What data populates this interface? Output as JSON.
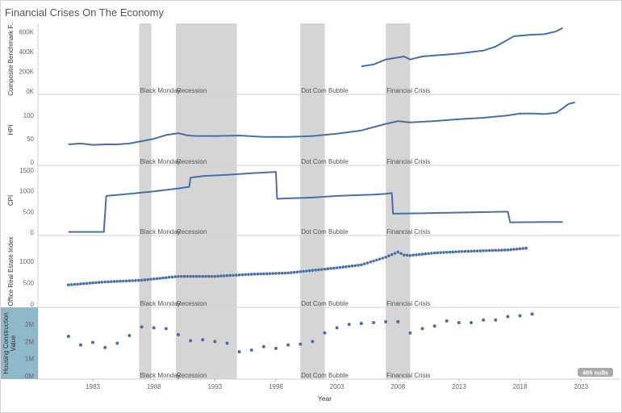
{
  "title": "Financial Crises On The Economy",
  "accent_color": "#4a6fa0",
  "band_color": "#d5d5d5",
  "chart_data": {
    "type": "line",
    "xlabel": "Year",
    "xlim": [
      1978.5,
      2025.5
    ],
    "x_ticks": [
      1983,
      1988,
      1993,
      1998,
      2003,
      2008,
      2013,
      2018,
      2023
    ],
    "events": [
      {
        "label": "Black Monday",
        "start": 1986.8,
        "end": 1987.8
      },
      {
        "label": "Recession",
        "start": 1989.8,
        "end": 1994.8
      },
      {
        "label": "Dot Com Bubble",
        "start": 2000.0,
        "end": 2002.0
      },
      {
        "label": "Financial Crisis",
        "start": 2007.0,
        "end": 2009.0
      }
    ],
    "null_badge": "465 nulls",
    "panels": [
      {
        "ylabel": "Composite Benchmark F..",
        "ylim": [
          0,
          660000
        ],
        "y_ticks": [
          0,
          200000,
          400000,
          600000
        ],
        "y_tick_labels": [
          "0K",
          "200K",
          "400K",
          "600K"
        ],
        "style": "line",
        "x": [
          2005,
          2006,
          2007,
          2008,
          2008.5,
          2009,
          2010,
          2011,
          2012,
          2013,
          2014,
          2015,
          2016,
          2017,
          2017.5,
          2018,
          2019,
          2020,
          2021,
          2021.5
        ],
        "y": [
          250000,
          270000,
          320000,
          340000,
          350000,
          320000,
          350000,
          360000,
          370000,
          380000,
          395000,
          410000,
          450000,
          520000,
          555000,
          560000,
          570000,
          575000,
          605000,
          640000
        ]
      },
      {
        "ylabel": "HPI",
        "ylim": [
          0,
          140
        ],
        "y_ticks": [
          0,
          50,
          100
        ],
        "y_tick_labels": [
          "0",
          "50",
          "100"
        ],
        "style": "line",
        "x": [
          1981,
          1982,
          1983,
          1984,
          1985,
          1986,
          1987,
          1988,
          1989,
          1990,
          1990.8,
          1991.5,
          1993,
          1995,
          1997,
          1999,
          2001,
          2003,
          2005,
          2007,
          2008,
          2009,
          2011,
          2013,
          2015,
          2017,
          2018,
          2019,
          2020,
          2021,
          2022,
          2022.5
        ],
        "y": [
          38,
          40,
          37,
          38,
          38,
          40,
          45,
          50,
          58,
          62,
          57,
          56,
          56,
          57,
          54,
          54,
          56,
          61,
          68,
          82,
          88,
          85,
          88,
          92,
          95,
          100,
          104,
          104,
          103,
          106,
          125,
          128
        ]
      },
      {
        "ylabel": "CPI",
        "ylim": [
          0,
          1560
        ],
        "y_ticks": [
          0,
          500,
          1000,
          1500
        ],
        "y_tick_labels": [
          "0",
          "500",
          "1000",
          "1500"
        ],
        "style": "step",
        "x": [
          1981,
          1983.9,
          1984.1,
          1986,
          1988,
          1990,
          1990.9,
          1991.0,
          1992,
          1994,
          1996,
          1998,
          1998.1,
          1999,
          2001,
          2002,
          2003,
          2005,
          2006,
          2007,
          2007.5,
          2007.6,
          2010,
          2017,
          2017.2,
          2020,
          2021.5
        ],
        "y": [
          10,
          10,
          880,
          930,
          990,
          1060,
          1100,
          1320,
          1360,
          1390,
          1430,
          1460,
          810,
          820,
          840,
          860,
          880,
          900,
          910,
          930,
          950,
          450,
          460,
          500,
          240,
          250,
          250
        ]
      },
      {
        "ylabel": "Office Real Estate Index",
        "ylim": [
          0,
          1550
        ],
        "y_ticks": [
          0,
          500,
          1000
        ],
        "y_tick_labels": [
          "0",
          "500",
          "1000"
        ],
        "style": "dots",
        "x": [
          1981,
          1984,
          1987,
          1990,
          1993,
          1996,
          1999,
          2001,
          2003,
          2005,
          2007,
          2008,
          2008.5,
          2009,
          2011,
          2013,
          2015,
          2017,
          2018.5
        ],
        "y": [
          450,
          520,
          560,
          650,
          650,
          700,
          730,
          790,
          850,
          920,
          1100,
          1220,
          1150,
          1140,
          1200,
          1230,
          1250,
          1270,
          1310
        ]
      },
      {
        "ylabel": "Housing Construction Value",
        "ylim": [
          0,
          3850000
        ],
        "y_ticks": [
          0,
          1000000,
          2000000,
          3000000
        ],
        "y_tick_labels": [
          "0M",
          "1M",
          "2M",
          "3M"
        ],
        "style": "scatter",
        "x": [
          1981,
          1982,
          1983,
          1984,
          1985,
          1986,
          1987,
          1988,
          1989,
          1990,
          1991,
          1992,
          1993,
          1994,
          1995,
          1996,
          1997,
          1998,
          1999,
          2000,
          2001,
          2002,
          2003,
          2004,
          2005,
          2006,
          2007,
          2008,
          2009,
          2010,
          2011,
          2012,
          2013,
          2014,
          2015,
          2016,
          2017,
          2018,
          2019
        ],
        "y": [
          2300000,
          1800000,
          1950000,
          1650000,
          1900000,
          2350000,
          2850000,
          2800000,
          2750000,
          2400000,
          2050000,
          2100000,
          2000000,
          1900000,
          1400000,
          1500000,
          1700000,
          1600000,
          1800000,
          1850000,
          2000000,
          2500000,
          2800000,
          3000000,
          3050000,
          3100000,
          3150000,
          3150000,
          2500000,
          2750000,
          2900000,
          3200000,
          3100000,
          3100000,
          3250000,
          3250000,
          3450000,
          3500000,
          3600000
        ]
      }
    ]
  }
}
